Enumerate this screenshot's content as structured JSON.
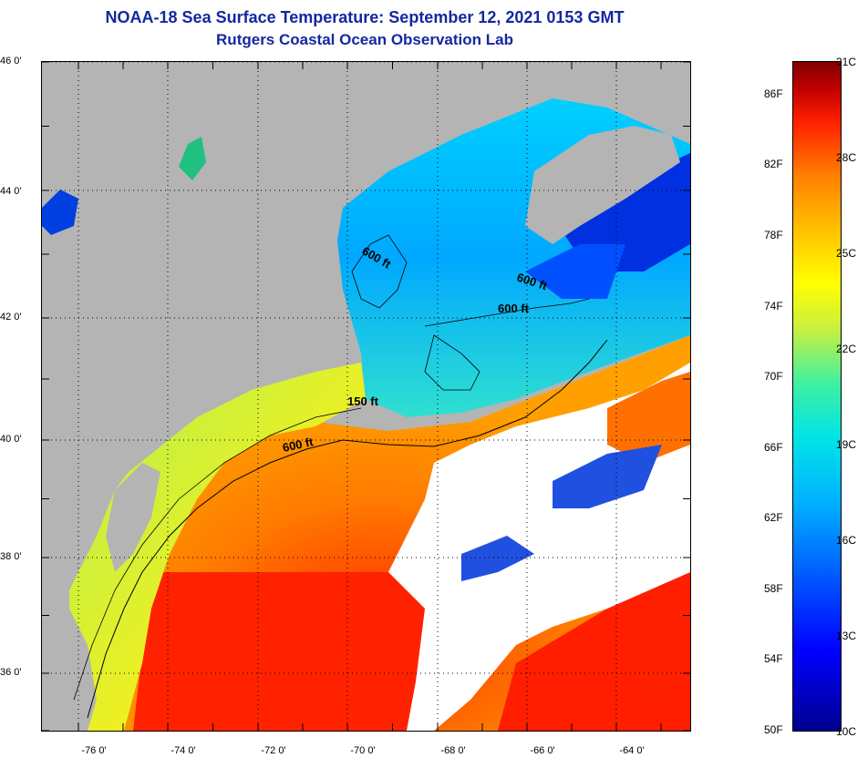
{
  "header": {
    "title": "NOAA-18 Sea Surface Temperature:  September 12, 2021 0153 GMT",
    "subtitle": "Rutgers Coastal Ocean Observation Lab"
  },
  "map": {
    "lat_labels": [
      "46 0'",
      "44 0'",
      "42 0'",
      "40 0'",
      "38 0'",
      "36 0'"
    ],
    "lon_labels": [
      "-76 0'",
      "-74 0'",
      "-72 0'",
      "-70 0'",
      "-68 0'",
      "-66 0'",
      "-64 0'"
    ],
    "contour_labels": [
      "600 ft",
      "600 ft",
      "600 ft",
      "150 ft",
      "600 ft"
    ],
    "colors": {
      "land": "#b4b4b4",
      "cloud": "#ffffff",
      "cold": "#0000c8",
      "warm": "#ff2000"
    }
  },
  "colorbar": {
    "f_labels": [
      "86F",
      "82F",
      "78F",
      "74F",
      "70F",
      "66F",
      "62F",
      "58F",
      "54F",
      "50F"
    ],
    "c_labels": [
      "31C",
      "28C",
      "25C",
      "22C",
      "19C",
      "16C",
      "13C",
      "10C"
    ]
  }
}
